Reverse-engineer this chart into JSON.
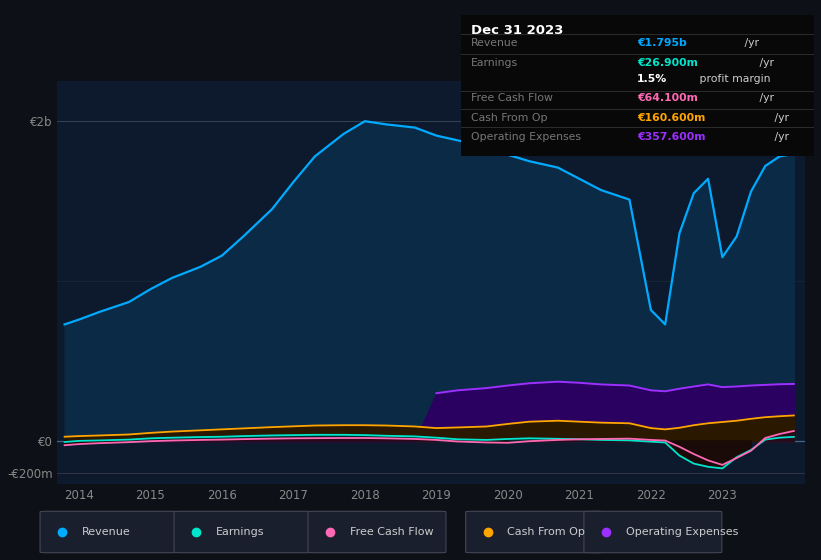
{
  "bg_color": "#0d1117",
  "plot_bg_color": "#0d1a2e",
  "panel_bg": "#111111",
  "title": "Dec 31 2023",
  "years": [
    2013.8,
    2014.0,
    2014.3,
    2014.7,
    2015.0,
    2015.3,
    2015.7,
    2016.0,
    2016.3,
    2016.7,
    2017.0,
    2017.3,
    2017.7,
    2018.0,
    2018.3,
    2018.7,
    2019.0,
    2019.3,
    2019.7,
    2020.0,
    2020.3,
    2020.7,
    2021.0,
    2021.3,
    2021.7,
    2022.0,
    2022.2,
    2022.4,
    2022.6,
    2022.8,
    2023.0,
    2023.2,
    2023.4,
    2023.6,
    2023.8,
    2024.0
  ],
  "revenue": [
    730,
    760,
    810,
    870,
    950,
    1020,
    1090,
    1160,
    1280,
    1450,
    1620,
    1780,
    1920,
    2000,
    1980,
    1960,
    1910,
    1880,
    1840,
    1790,
    1750,
    1710,
    1640,
    1570,
    1510,
    820,
    730,
    1300,
    1550,
    1640,
    1150,
    1280,
    1560,
    1720,
    1780,
    1795
  ],
  "earnings": [
    -5,
    2,
    5,
    10,
    18,
    22,
    26,
    28,
    32,
    36,
    38,
    40,
    40,
    38,
    34,
    30,
    22,
    12,
    8,
    14,
    18,
    15,
    12,
    8,
    5,
    -3,
    -8,
    -90,
    -140,
    -160,
    -170,
    -100,
    -55,
    10,
    22,
    27
  ],
  "free_cash_flow": [
    -25,
    -18,
    -12,
    -6,
    0,
    4,
    8,
    10,
    13,
    16,
    18,
    19,
    20,
    20,
    18,
    14,
    8,
    -2,
    -8,
    -10,
    0,
    8,
    12,
    14,
    16,
    8,
    4,
    -35,
    -80,
    -120,
    -148,
    -105,
    -60,
    20,
    45,
    64
  ],
  "cash_from_op": [
    28,
    32,
    36,
    42,
    52,
    60,
    68,
    74,
    80,
    88,
    93,
    98,
    100,
    100,
    98,
    92,
    82,
    86,
    92,
    108,
    122,
    128,
    122,
    116,
    112,
    82,
    74,
    84,
    100,
    112,
    120,
    128,
    140,
    150,
    156,
    161
  ],
  "operating_expenses": [
    0,
    0,
    0,
    0,
    0,
    0,
    0,
    0,
    0,
    0,
    0,
    0,
    0,
    0,
    0,
    0,
    300,
    318,
    332,
    348,
    362,
    372,
    365,
    355,
    348,
    318,
    312,
    328,
    342,
    355,
    338,
    342,
    348,
    352,
    356,
    358
  ],
  "xlim": [
    2013.7,
    2024.15
  ],
  "ylim": [
    -270,
    2250
  ],
  "xtick_years": [
    2014,
    2015,
    2016,
    2017,
    2018,
    2019,
    2020,
    2021,
    2022,
    2023
  ],
  "colors": {
    "revenue_line": "#00aaff",
    "revenue_fill": "#0a2a45",
    "earnings_line": "#00e5cc",
    "earnings_fill_pos": "#002a2a",
    "earnings_fill_neg": "#1a0a0a",
    "fcf_line": "#ff69b4",
    "fcf_fill_pos": "#2a0a1a",
    "fcf_fill_neg": "#1a0a08",
    "cashop_line": "#ffa500",
    "cashop_fill": "#2a1800",
    "opex_line": "#9b30ff",
    "opex_fill": "#2a0060"
  },
  "tooltip_rows": [
    {
      "label": "Revenue",
      "value": "€1.795b",
      "suffix": " /yr",
      "value_color": "#00aaff"
    },
    {
      "label": "Earnings",
      "value": "€26.900m",
      "suffix": " /yr",
      "value_color": "#00e5cc"
    },
    {
      "label": "",
      "value": "1.5%",
      "suffix": " profit margin",
      "value_color": "#ffffff"
    },
    {
      "label": "Free Cash Flow",
      "value": "€64.100m",
      "suffix": " /yr",
      "value_color": "#ff69b4"
    },
    {
      "label": "Cash From Op",
      "value": "€160.600m",
      "suffix": " /yr",
      "value_color": "#ffa500"
    },
    {
      "label": "Operating Expenses",
      "value": "€357.600m",
      "suffix": " /yr",
      "value_color": "#9b30ff"
    }
  ],
  "legend_items": [
    {
      "label": "Revenue",
      "color": "#00aaff"
    },
    {
      "label": "Earnings",
      "color": "#00e5cc"
    },
    {
      "label": "Free Cash Flow",
      "color": "#ff69b4"
    },
    {
      "label": "Cash From Op",
      "color": "#ffa500"
    },
    {
      "label": "Operating Expenses",
      "color": "#9b30ff"
    }
  ]
}
